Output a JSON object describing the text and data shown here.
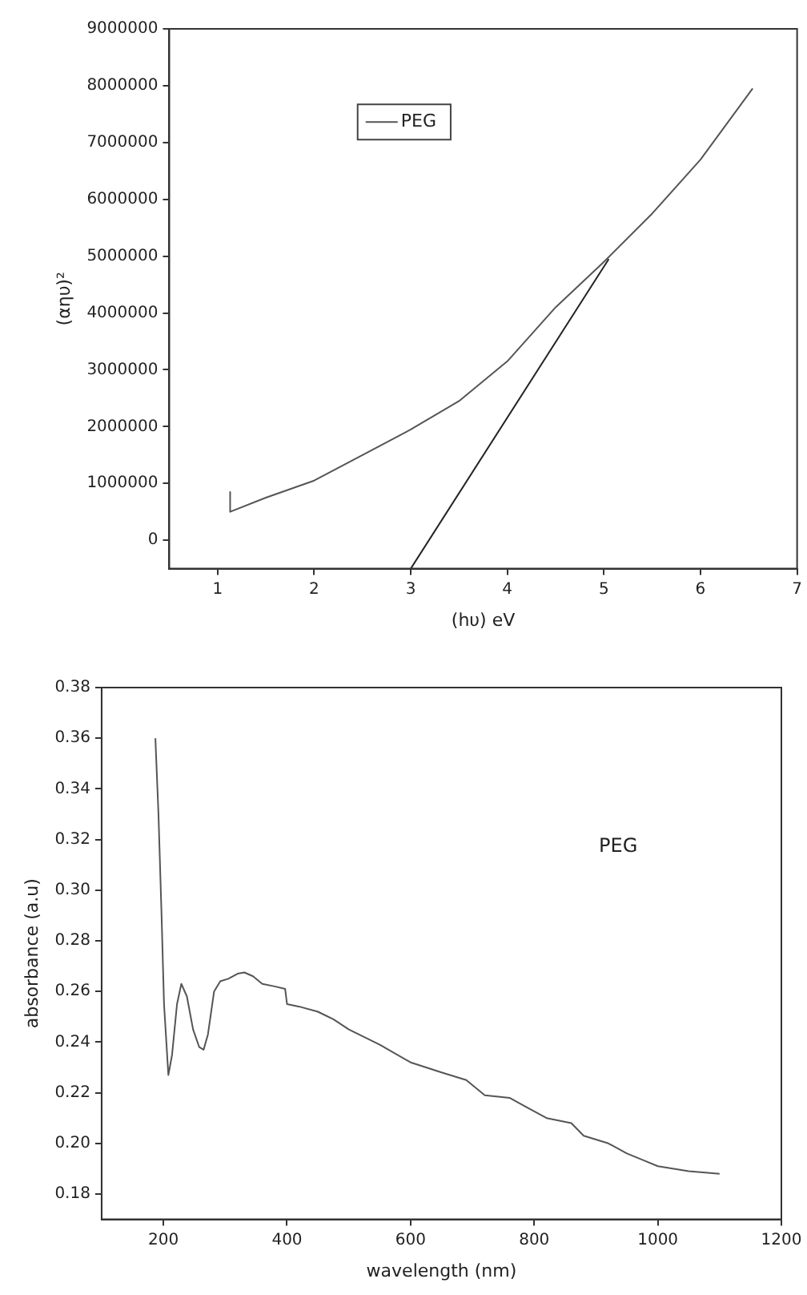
{
  "chart_data": [
    {
      "type": "line",
      "xlabel": "(hυ) eV",
      "ylabel": "(αηυ)²",
      "xlim": [
        0.5,
        7
      ],
      "xticks": [
        1,
        2,
        3,
        4,
        5,
        6,
        7
      ],
      "ylim": [
        -500000,
        9000000
      ],
      "yticks": [
        0,
        1000000,
        2000000,
        3000000,
        4000000,
        5000000,
        6000000,
        7000000,
        8000000,
        9000000
      ],
      "grid": false,
      "legend": "top left",
      "series": [
        {
          "name": "PEG",
          "color": "#555555",
          "x": [
            1.13,
            1.13,
            1.5,
            2,
            2.5,
            3,
            3.5,
            4,
            4.5,
            5,
            5.5,
            6,
            6.54
          ],
          "values": [
            850000,
            500000,
            750000,
            1050000,
            1500000,
            1950000,
            2450000,
            3150000,
            4100000,
            4900000,
            5750000,
            6700000,
            7950000
          ]
        },
        {
          "color": "#222222",
          "x": [
            3.0,
            5.05
          ],
          "values": [
            -500000,
            4950000
          ]
        }
      ]
    },
    {
      "type": "line",
      "xlabel": "wavelength (nm)",
      "ylabel": "absorbance (a.u)",
      "xlim": [
        100,
        1200
      ],
      "xticks": [
        200,
        400,
        600,
        800,
        1000,
        1200
      ],
      "ylim": [
        0.17,
        0.38
      ],
      "yticks": [
        0.18,
        {
          "value": 0.2,
          "label": "0.20"
        },
        0.22,
        0.24,
        0.26,
        0.28,
        {
          "value": 0.3,
          "label": "0.30"
        },
        0.32,
        0.34,
        0.36,
        0.38
      ],
      "grid": false,
      "annotations": [
        "PEG"
      ],
      "series": [
        {
          "color": "#555555",
          "x": [
            187,
            192,
            197,
            201,
            204,
            208,
            214,
            222,
            229,
            238,
            248,
            258,
            265,
            272,
            282,
            292,
            305,
            320,
            331,
            345,
            360,
            380,
            397,
            400,
            420,
            450,
            475,
            500,
            550,
            600,
            650,
            690,
            720,
            760,
            790,
            820,
            860,
            880,
            920,
            950,
            980,
            1000,
            1050,
            1100
          ],
          "values": [
            0.36,
            0.33,
            0.29,
            0.255,
            0.243,
            0.227,
            0.235,
            0.255,
            0.263,
            0.258,
            0.245,
            0.238,
            0.237,
            0.243,
            0.26,
            0.264,
            0.265,
            0.267,
            0.2675,
            0.266,
            0.263,
            0.262,
            0.261,
            0.255,
            0.254,
            0.252,
            0.249,
            0.245,
            0.239,
            0.232,
            0.228,
            0.225,
            0.219,
            0.218,
            0.214,
            0.21,
            0.208,
            0.203,
            0.2,
            0.196,
            0.193,
            0.191,
            0.189,
            0.188
          ]
        }
      ]
    }
  ]
}
